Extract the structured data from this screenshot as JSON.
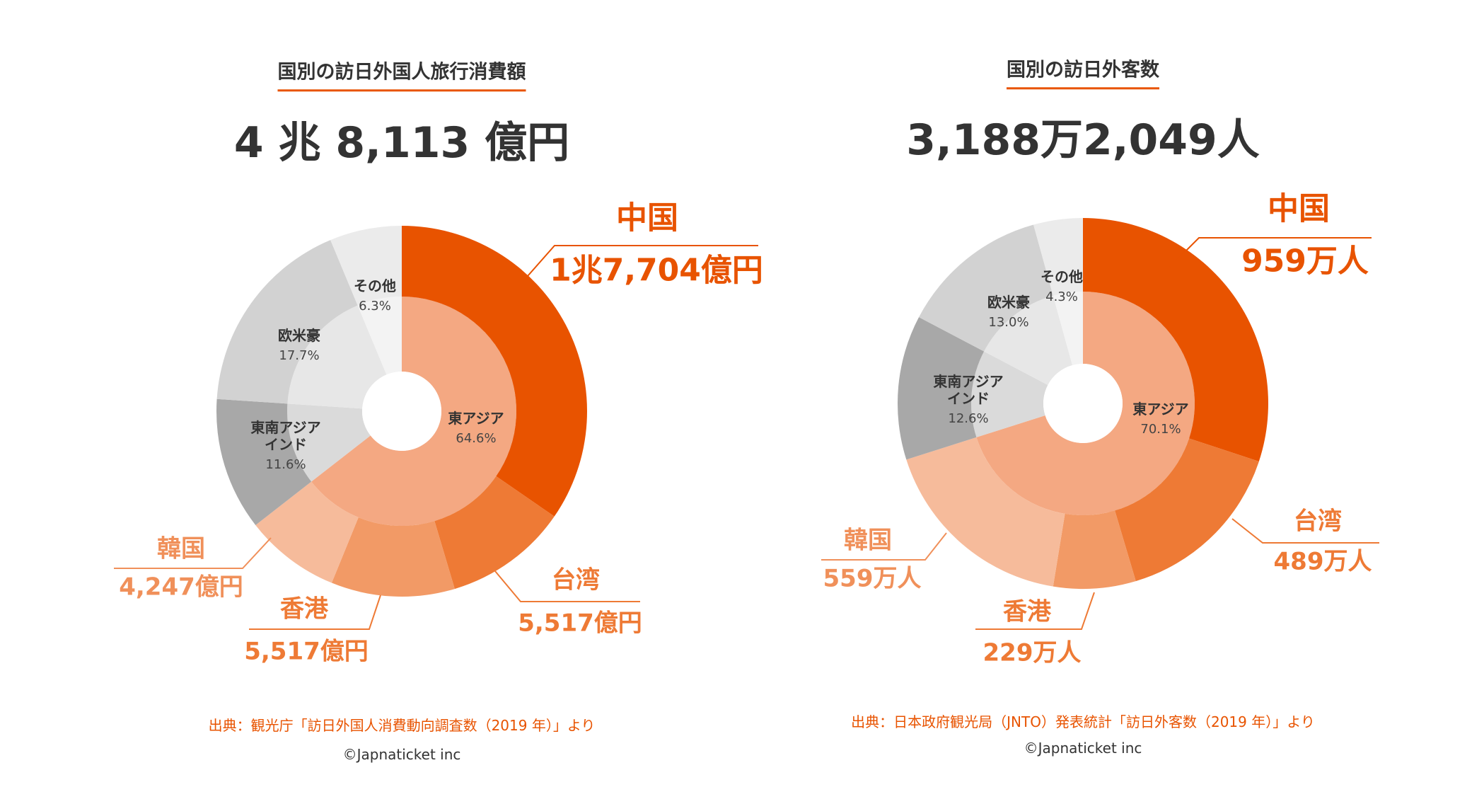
{
  "chart_data": [
    {
      "type": "donut",
      "title": "国別の訪日外国人旅行消費額",
      "total_label": "4 兆 8,113 億円",
      "regions": [
        {
          "name": "東アジア",
          "value": 64.6,
          "value_label": "64.6%",
          "color": "#f4a882"
        },
        {
          "name": "東南アジア\nインド",
          "value": 11.6,
          "value_label": "11.6%",
          "color": "#dadada",
          "outer_color": "#a8a8a8"
        },
        {
          "name": "欧米豪",
          "value": 17.7,
          "value_label": "17.7%",
          "color": "#e7e7e7",
          "outer_color": "#d2d2d2"
        },
        {
          "name": "その他",
          "value": 6.3,
          "value_label": "6.3%",
          "color": "#f3f3f3",
          "outer_color": "#ebebeb"
        }
      ],
      "breakdown": {
        "categories": [
          "中国",
          "台湾",
          "香港",
          "韓国"
        ],
        "values": [
          17704,
          5517,
          5517,
          4247
        ],
        "value_labels": [
          "1兆7,704億円",
          "5,517億円",
          "5,517億円",
          "4,247億円"
        ],
        "colors": [
          "#e85300",
          "#ee7a35",
          "#f29a66",
          "#f6bb9b"
        ],
        "label_colors": [
          "#e85300",
          "#ee7a35",
          "#ee7a35",
          "#f0905a"
        ]
      },
      "source": "出典：観光庁「訪日外国人消費動向調査数（2019 年）」より",
      "copyright": "©Japnaticket inc"
    },
    {
      "type": "donut",
      "title": "国別の訪日外客数",
      "total_label": "3,188万2,049人",
      "regions": [
        {
          "name": "東アジア",
          "value": 70.1,
          "value_label": "70.1%",
          "color": "#f4a882"
        },
        {
          "name": "東南アジア\nインド",
          "value": 12.6,
          "value_label": "12.6%",
          "color": "#dadada",
          "outer_color": "#a8a8a8"
        },
        {
          "name": "欧米豪",
          "value": 13.0,
          "value_label": "13.0%",
          "color": "#e7e7e7",
          "outer_color": "#d2d2d2"
        },
        {
          "name": "その他",
          "value": 4.3,
          "value_label": "4.3%",
          "color": "#f3f3f3",
          "outer_color": "#ebebeb"
        }
      ],
      "breakdown": {
        "categories": [
          "中国",
          "台湾",
          "香港",
          "韓国"
        ],
        "values": [
          959,
          489,
          229,
          559
        ],
        "value_labels": [
          "959万人",
          "489万人",
          "229万人",
          "559万人"
        ],
        "colors": [
          "#e85300",
          "#ee7a35",
          "#f29a66",
          "#f6bb9b"
        ],
        "label_colors": [
          "#e85300",
          "#ee7a35",
          "#ee7a35",
          "#f0905a"
        ]
      },
      "source": "出典：日本政府観光局（JNTO）発表統計「訪日外客数（2019 年）」より",
      "copyright": "©Japnaticket inc"
    }
  ]
}
